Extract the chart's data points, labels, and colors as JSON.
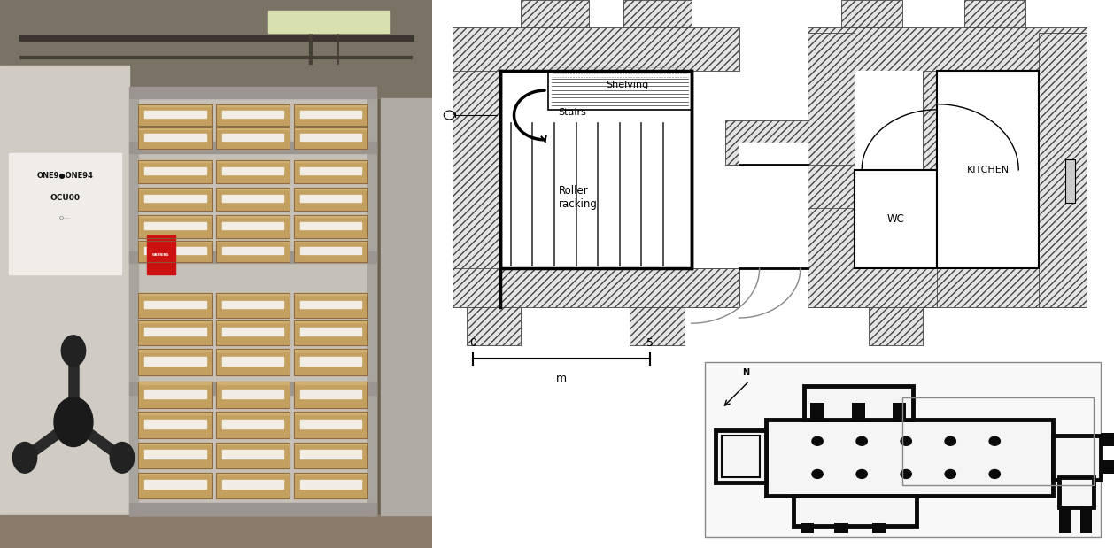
{
  "figure_width": 12.58,
  "figure_height": 6.19,
  "dpi": 100,
  "bg": "#ffffff",
  "photo_split": 0.388,
  "labels": {
    "shelving": "Shelving",
    "stairs": "Stairs",
    "roller_racking": "Roller\nracking",
    "wc": "WC",
    "kitchen": "KITCHEN",
    "scale_0": "0",
    "scale_5": "5",
    "scale_m": "m",
    "north": "N"
  },
  "hatch_fc": "#e8e8e8",
  "hatch_ec": "#555555",
  "wall_color": "#000000"
}
